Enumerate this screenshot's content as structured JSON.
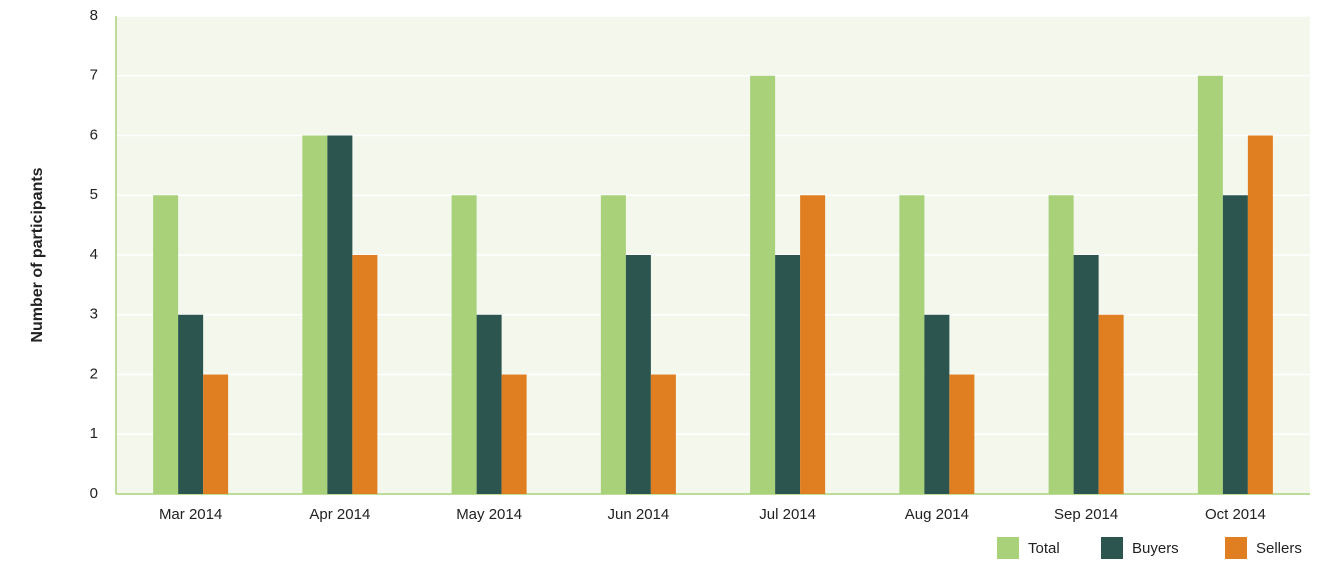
{
  "chart_data": {
    "type": "bar",
    "y_label": "Number of participants",
    "categories": [
      "Mar 2014",
      "Apr 2014",
      "May 2014",
      "Jun 2014",
      "Jul 2014",
      "Aug 2014",
      "Sep 2014",
      "Oct 2014"
    ],
    "series": [
      {
        "name": "Total",
        "color": "#a8d17a",
        "values": [
          5,
          6,
          5,
          5,
          7,
          5,
          5,
          7
        ]
      },
      {
        "name": "Buyers",
        "color": "#2b554e",
        "values": [
          3,
          6,
          3,
          4,
          4,
          3,
          4,
          5
        ]
      },
      {
        "name": "Sellers",
        "color": "#e07f22",
        "values": [
          2,
          4,
          2,
          2,
          5,
          2,
          3,
          6
        ]
      }
    ],
    "ylim": [
      0,
      8
    ],
    "yticks": [
      0,
      1,
      2,
      3,
      4,
      5,
      6,
      7,
      8
    ],
    "grid": true,
    "legend": "bottom-right"
  }
}
